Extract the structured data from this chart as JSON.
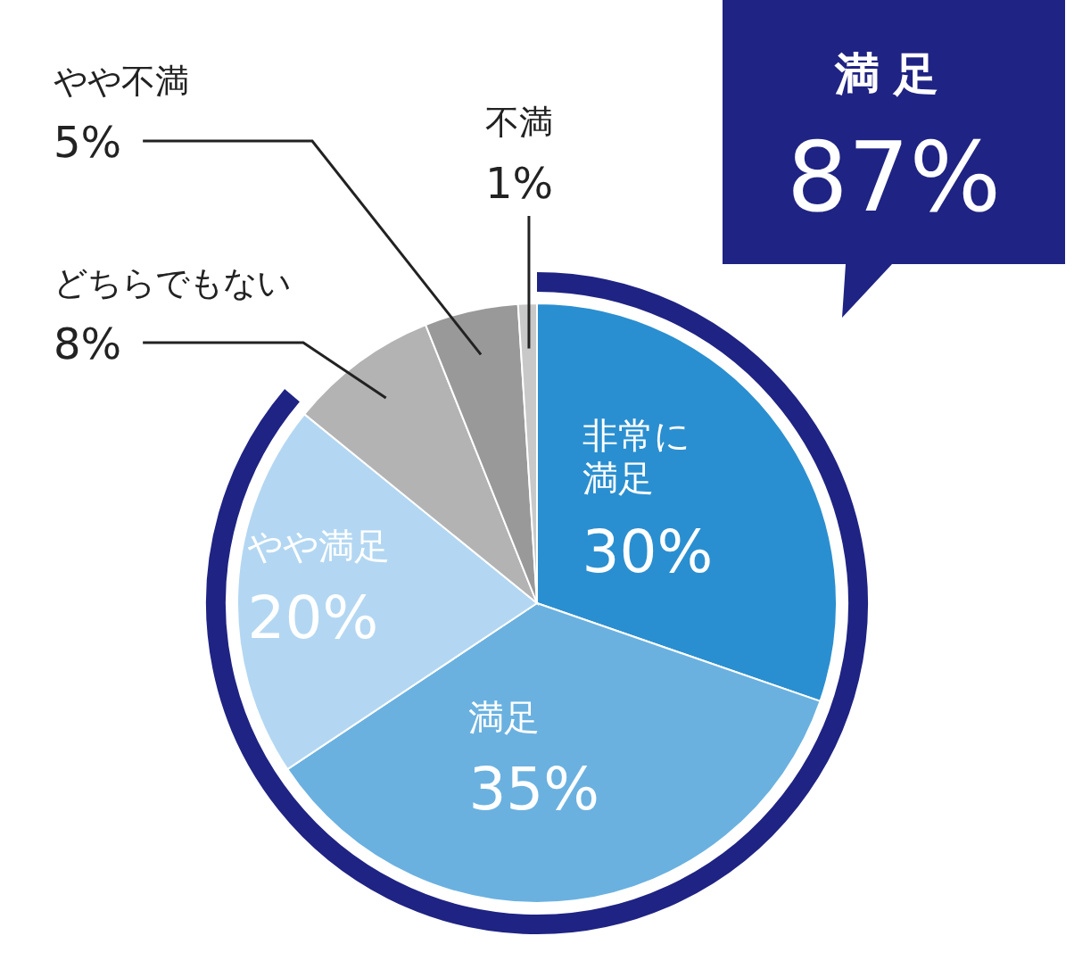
{
  "chart_data": {
    "type": "pie",
    "categories": [
      "非常に満足",
      "満足",
      "やや満足",
      "どちらでもない",
      "やや不満",
      "不満"
    ],
    "values": [
      30,
      35,
      20,
      8,
      5,
      1
    ],
    "colors": [
      "#2a8fd0",
      "#6ab1e0",
      "#b3d7f2",
      "#b3b3b3",
      "#999999",
      "#c8c8c8"
    ],
    "value_labels": [
      "30%",
      "35%",
      "20%",
      "8%",
      "5%",
      "1%"
    ],
    "annotations": [
      "満足",
      "87%"
    ]
  }
}
